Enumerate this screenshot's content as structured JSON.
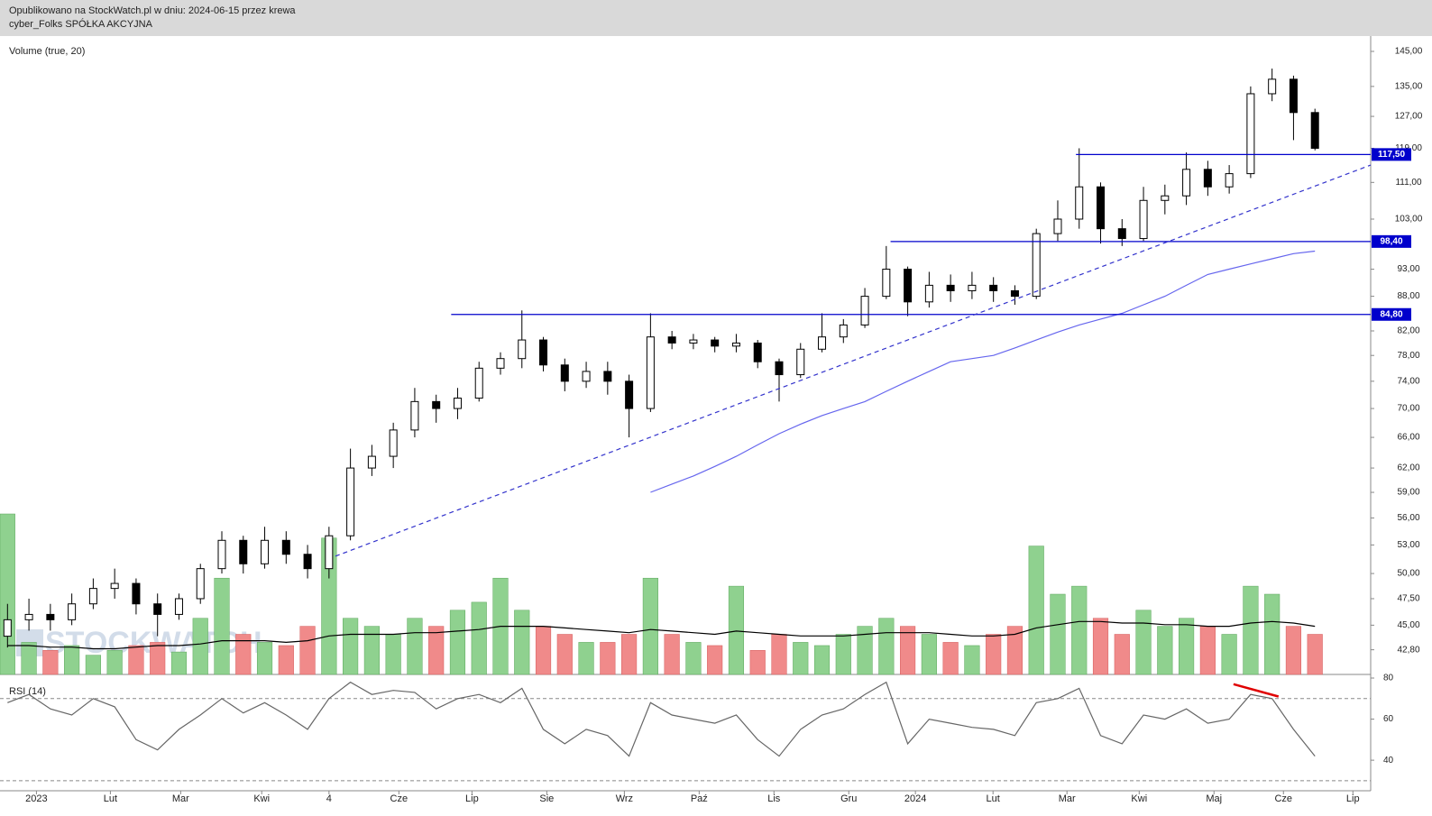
{
  "header": {
    "line1": "Opublikowano na StockWatch.pl w dniu: 2024-06-15 przez krewa",
    "line2": "cyber_Folks SPÓŁKA AKCYJNA"
  },
  "watermark": "STOCKWATCH",
  "chart_data": [
    {
      "type": "candlestick",
      "title": "Volume (true, 20)",
      "log": true,
      "xlim": [
        -0.35,
        63.6
      ],
      "ylim": [
        40.7,
        149.6
      ],
      "open": [
        44,
        45.5,
        46,
        45.5,
        47,
        48.5,
        49,
        47,
        46,
        47.5,
        50.5,
        53.5,
        51,
        53.5,
        52,
        50.5,
        54,
        62,
        63.5,
        67,
        71,
        70,
        71.5,
        76,
        77.5,
        80.5,
        76.5,
        74,
        75.5,
        74,
        70,
        81,
        80,
        80.5,
        79.5,
        80,
        77,
        75,
        79,
        81,
        83,
        88,
        93,
        87,
        90,
        89,
        90,
        89,
        88,
        100,
        103,
        110,
        101,
        99,
        107,
        108,
        114,
        110,
        113,
        133,
        137,
        128
      ],
      "high": [
        47,
        47.5,
        47,
        48,
        49.5,
        50.5,
        49.5,
        48,
        48,
        51,
        54.5,
        54,
        55,
        54.5,
        53,
        55,
        64.5,
        65,
        68,
        73,
        72,
        73,
        77,
        78.5,
        85.5,
        81,
        77.5,
        77,
        77,
        75,
        85,
        82,
        81.5,
        81,
        81.5,
        80.5,
        77.5,
        80,
        85,
        84,
        89.5,
        97.5,
        93.5,
        92.5,
        92,
        92.5,
        91.5,
        90,
        101,
        107,
        119,
        111,
        103,
        110,
        110.5,
        118,
        116,
        115,
        135,
        140,
        138,
        129
      ],
      "low": [
        43,
        44.5,
        44.5,
        45,
        46.5,
        47.5,
        46,
        44,
        45.5,
        47,
        50,
        50,
        50.5,
        51,
        49.5,
        49.5,
        53.5,
        61,
        62,
        66,
        68,
        68.5,
        71,
        75,
        76,
        75.5,
        72.5,
        73,
        72,
        66,
        69.5,
        79,
        79,
        78.5,
        78.5,
        76,
        71,
        74.5,
        78.5,
        80,
        82.5,
        87.5,
        84.5,
        86,
        87,
        87.5,
        87,
        86.5,
        87.5,
        98.5,
        101,
        98,
        97.5,
        98.5,
        104,
        106,
        108,
        108.5,
        112,
        131,
        121,
        118.5
      ],
      "close": [
        45.5,
        46,
        45.5,
        47,
        48.5,
        49,
        47,
        46,
        47.5,
        50.5,
        53.5,
        51,
        53.5,
        52,
        50.5,
        54,
        62,
        63.5,
        67,
        71,
        70,
        71.5,
        76,
        77.5,
        80.5,
        76.5,
        74,
        75.5,
        74,
        70,
        81,
        80,
        80.5,
        79.5,
        80,
        77,
        75,
        79,
        81,
        83,
        88,
        93,
        87,
        90,
        89,
        90,
        89,
        88,
        100,
        103,
        110,
        101,
        99,
        107,
        108,
        114,
        110,
        113,
        133,
        137,
        128,
        119
      ],
      "volume": [
        100,
        20,
        15,
        18,
        12,
        15,
        18,
        20,
        14,
        35,
        60,
        25,
        20,
        18,
        30,
        85,
        35,
        30,
        25,
        35,
        30,
        40,
        45,
        60,
        40,
        30,
        25,
        20,
        20,
        25,
        60,
        25,
        20,
        18,
        55,
        15,
        25,
        20,
        18,
        25,
        30,
        35,
        30,
        25,
        20,
        18,
        25,
        30,
        80,
        50,
        55,
        35,
        25,
        40,
        30,
        35,
        30,
        25,
        55,
        50,
        30,
        25
      ],
      "volume_ma": [
        18,
        18,
        17,
        17,
        16,
        16,
        17,
        18,
        18,
        19,
        21,
        21,
        21,
        20,
        21,
        24,
        25,
        25,
        25,
        26,
        26,
        27,
        28,
        30,
        30,
        30,
        29,
        28,
        27,
        26,
        28,
        27,
        26,
        25,
        27,
        26,
        25,
        24,
        24,
        24,
        25,
        26,
        26,
        26,
        25,
        24,
        24,
        25,
        29,
        31,
        33,
        33,
        32,
        32,
        31,
        31,
        30,
        30,
        32,
        33,
        32,
        30
      ],
      "sma": [
        null,
        null,
        null,
        null,
        null,
        null,
        null,
        null,
        null,
        null,
        null,
        null,
        null,
        null,
        null,
        null,
        null,
        null,
        null,
        null,
        null,
        null,
        null,
        null,
        null,
        null,
        null,
        null,
        null,
        null,
        59,
        60,
        61,
        62.2,
        63.5,
        65,
        66.5,
        67.8,
        69,
        70,
        71,
        72.5,
        74,
        75.5,
        77,
        77.5,
        78,
        79.2,
        80.5,
        81.8,
        83,
        84,
        85,
        86.5,
        88,
        90,
        92,
        93,
        94,
        95,
        96,
        96.5
      ],
      "sma_color": "#6666ee",
      "yticks": [
        {
          "value": 145,
          "label": "145,00"
        },
        {
          "value": 135,
          "label": "135,00"
        },
        {
          "value": 127,
          "label": "127,00"
        },
        {
          "value": 119,
          "label": "119,00"
        },
        {
          "value": 111,
          "label": "111,00"
        },
        {
          "value": 103,
          "label": "103,00"
        },
        {
          "value": 93,
          "label": "93,00"
        },
        {
          "value": 88,
          "label": "88,00"
        },
        {
          "value": 82,
          "label": "82,00"
        },
        {
          "value": 78,
          "label": "78,00"
        },
        {
          "value": 74,
          "label": "74,00"
        },
        {
          "value": 70,
          "label": "70,00"
        },
        {
          "value": 66,
          "label": "66,00"
        },
        {
          "value": 62,
          "label": "62,00"
        },
        {
          "value": 59,
          "label": "59,00"
        },
        {
          "value": 56,
          "label": "56,00"
        },
        {
          "value": 53,
          "label": "53,00"
        },
        {
          "value": 50,
          "label": "50,00"
        },
        {
          "value": 47.5,
          "label": "47,50"
        },
        {
          "value": 45,
          "label": "45,00"
        },
        {
          "value": 42.8,
          "label": "42,80"
        }
      ],
      "levels": [
        {
          "value": 117.5,
          "label": "117,50",
          "start": 49.85
        },
        {
          "value": 98.4,
          "label": "98,40",
          "start": 41.2
        },
        {
          "value": 84.8,
          "label": "84,80",
          "start": 20.7
        }
      ],
      "trendline": {
        "x": [
          15.3,
          63.6
        ],
        "y": [
          51.8,
          115
        ]
      },
      "xticks": [
        {
          "value": 1.35,
          "label": "2023"
        },
        {
          "value": 4.8,
          "label": "Lut"
        },
        {
          "value": 8.08,
          "label": "Mar"
        },
        {
          "value": 11.86,
          "label": "Kwi"
        },
        {
          "value": 15.0,
          "label": "4"
        },
        {
          "value": 18.26,
          "label": "Cze"
        },
        {
          "value": 21.67,
          "label": "Lip"
        },
        {
          "value": 25.16,
          "label": "Sie"
        },
        {
          "value": 28.78,
          "label": "Wrz"
        },
        {
          "value": 32.27,
          "label": "Paź"
        },
        {
          "value": 35.76,
          "label": "Lis"
        },
        {
          "value": 39.25,
          "label": "Gru"
        },
        {
          "value": 42.36,
          "label": "2024"
        },
        {
          "value": 45.98,
          "label": "Lut"
        },
        {
          "value": 49.43,
          "label": "Mar"
        },
        {
          "value": 52.8,
          "label": "Kwi"
        },
        {
          "value": 56.29,
          "label": "Maj"
        },
        {
          "value": 59.53,
          "label": "Cze"
        },
        {
          "value": 62.77,
          "label": "Lip"
        }
      ]
    },
    {
      "type": "line",
      "title": "RSI (14)",
      "ylim": [
        26,
        80
      ],
      "yticks": [
        80,
        60,
        40
      ],
      "levels": [
        70,
        30
      ],
      "color": "#666666",
      "values": [
        68,
        72,
        65,
        62,
        70,
        66,
        50,
        45,
        55,
        62,
        70,
        63,
        68,
        62,
        55,
        70,
        78,
        72,
        74,
        73,
        65,
        70,
        72,
        68,
        75,
        55,
        48,
        55,
        52,
        42,
        68,
        62,
        60,
        58,
        62,
        50,
        42,
        55,
        62,
        65,
        72,
        78,
        48,
        60,
        58,
        56,
        55,
        52,
        68,
        70,
        75,
        52,
        48,
        62,
        60,
        65,
        58,
        60,
        72,
        70,
        55,
        42
      ],
      "trendline": {
        "x": [
          57.2,
          59.3
        ],
        "y": [
          77,
          71
        ],
        "color": "#e00000"
      }
    }
  ]
}
